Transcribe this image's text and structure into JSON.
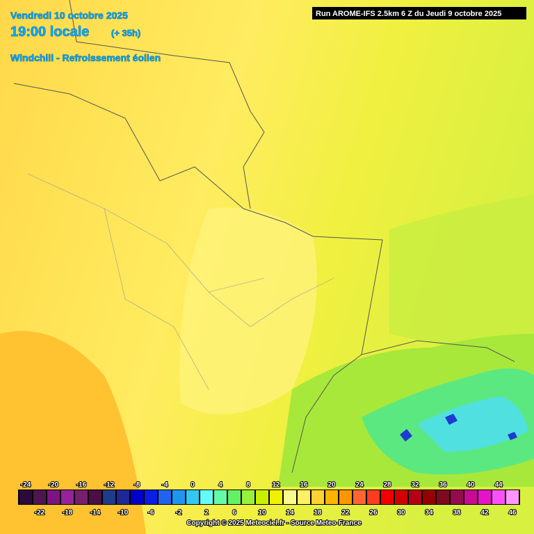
{
  "header": {
    "date": "Vendredi 10 octobre 2025",
    "time": "19:00 locale",
    "lead": "(+ 35h)",
    "parameter": "Windchill - Refroissement éolien",
    "run": "Run AROME-IFS 2.5km 6 Z du Jeudi 9 octobre 2025"
  },
  "legend": {
    "scale": [
      {
        "value": -24,
        "color": "#2d0a3c"
      },
      {
        "value": -22,
        "color": "#501450"
      },
      {
        "value": -20,
        "color": "#7d1482"
      },
      {
        "value": -18,
        "color": "#96239b"
      },
      {
        "value": -16,
        "color": "#781e6e"
      },
      {
        "value": -14,
        "color": "#4b0f46"
      },
      {
        "value": -12,
        "color": "#1e3c8c"
      },
      {
        "value": -10,
        "color": "#1e2896"
      },
      {
        "value": -8,
        "color": "#0000c8"
      },
      {
        "value": -6,
        "color": "#0a1ee6"
      },
      {
        "value": -4,
        "color": "#1e64f0"
      },
      {
        "value": -2,
        "color": "#1e96f0"
      },
      {
        "value": 0,
        "color": "#32c8f0"
      },
      {
        "value": 2,
        "color": "#64fafa"
      },
      {
        "value": 4,
        "color": "#64faaa"
      },
      {
        "value": 6,
        "color": "#64f064"
      },
      {
        "value": 8,
        "color": "#96f03c"
      },
      {
        "value": 10,
        "color": "#c8f000"
      },
      {
        "value": 12,
        "color": "#f0f000"
      },
      {
        "value": 14,
        "color": "#fafa8c"
      },
      {
        "value": 16,
        "color": "#fff064"
      },
      {
        "value": 18,
        "color": "#ffd232"
      },
      {
        "value": 20,
        "color": "#ffb400"
      },
      {
        "value": 22,
        "color": "#ff9600"
      },
      {
        "value": 24,
        "color": "#ff6432"
      },
      {
        "value": 26,
        "color": "#ff3c1e"
      },
      {
        "value": 28,
        "color": "#f00000"
      },
      {
        "value": 30,
        "color": "#d20000"
      },
      {
        "value": 32,
        "color": "#b40014"
      },
      {
        "value": 34,
        "color": "#960000"
      },
      {
        "value": 36,
        "color": "#7d0a1e"
      },
      {
        "value": 38,
        "color": "#960a50"
      },
      {
        "value": 40,
        "color": "#c80a96"
      },
      {
        "value": 42,
        "color": "#e614c8"
      },
      {
        "value": 44,
        "color": "#fa50fa"
      },
      {
        "value": 46,
        "color": "#ff96ff"
      }
    ]
  },
  "footer": {
    "copyright": "Copyright © 2025 Meteociel.fr - Source Meteo-France"
  }
}
